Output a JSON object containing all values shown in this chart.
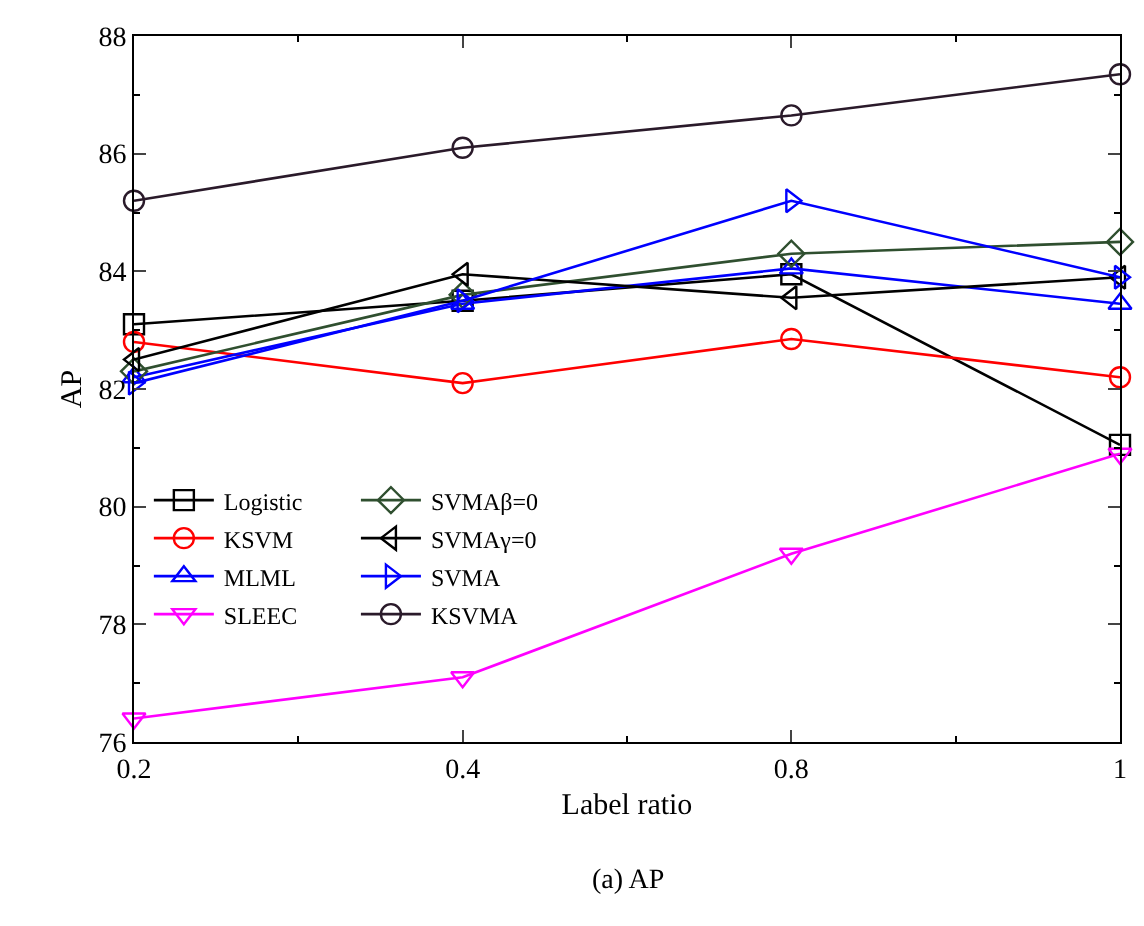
{
  "chart_data": {
    "type": "line",
    "xlabel": "Label ratio",
    "ylabel": "AP",
    "annotations": [
      "(a) AP"
    ],
    "categories": [
      "0.2",
      "0.4",
      "0.8",
      "1"
    ],
    "ylim": [
      76,
      88
    ],
    "yticks": [
      76,
      78,
      80,
      82,
      84,
      86,
      88
    ],
    "legend": "bottom left",
    "line_style": "solid",
    "series": [
      {
        "name": "Logistic",
        "color": "#000000",
        "marker": "square",
        "values": [
          83.1,
          83.5,
          83.95,
          81.05
        ]
      },
      {
        "name": "KSVM",
        "color": "#ff0000",
        "marker": "circle",
        "values": [
          82.8,
          82.1,
          82.85,
          82.2
        ]
      },
      {
        "name": "MLML",
        "color": "#0000ff",
        "marker": "triangle-up",
        "values": [
          82.2,
          83.45,
          84.05,
          83.45
        ]
      },
      {
        "name": "SLEEC",
        "color": "#ff00ff",
        "marker": "triangle-down",
        "values": [
          76.4,
          77.1,
          79.2,
          80.9
        ]
      },
      {
        "name": "SVMAβ=0",
        "color": "#2f4f2f",
        "marker": "diamond",
        "values": [
          82.3,
          83.6,
          84.3,
          84.5
        ]
      },
      {
        "name": "SVMAγ=0",
        "color": "#000000",
        "marker": "triangle-left",
        "values": [
          82.5,
          83.95,
          83.55,
          83.9
        ]
      },
      {
        "name": "SVMA",
        "color": "#0000ff",
        "marker": "triangle-right",
        "values": [
          82.1,
          83.5,
          85.2,
          83.9
        ]
      },
      {
        "name": "KSVMA",
        "color": "#2a1a2a",
        "marker": "circle",
        "values": [
          85.2,
          86.1,
          86.65,
          87.35
        ]
      }
    ]
  }
}
